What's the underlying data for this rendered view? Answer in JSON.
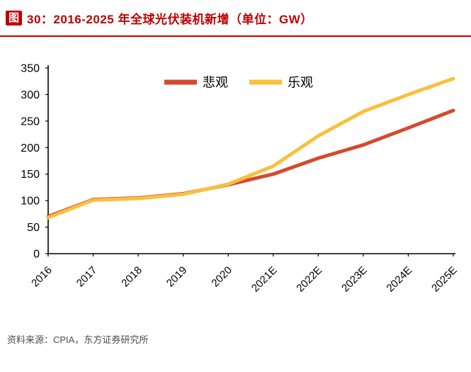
{
  "header": {
    "figure_label": "图",
    "title": "30：2016-2025 年全球光伏装机新增（单位：GW）"
  },
  "footer": {
    "source": "资料来源：CPIA，东方证券研究所"
  },
  "colors": {
    "title_red": "#c00000",
    "axis": "#000000",
    "source_text": "#4d4d4d",
    "pessimistic_red": "#d6492d",
    "optimistic_yellow": "#fac03d"
  },
  "chart_data": {
    "type": "line",
    "title": "2016-2025 年全球光伏装机新增（单位：GW）",
    "unit": "GW",
    "categories": [
      "2016",
      "2017",
      "2018",
      "2019",
      "2020",
      "2021E",
      "2022E",
      "2023E",
      "2024E",
      "2025E"
    ],
    "series": [
      {
        "name": "悲观",
        "color": "#d6492d",
        "values": [
          70,
          102,
          105,
          113,
          130,
          150,
          180,
          205,
          237,
          270
        ]
      },
      {
        "name": "乐观",
        "color": "#fac03d",
        "values": [
          68,
          101,
          104,
          112,
          131,
          165,
          222,
          268,
          300,
          330
        ]
      }
    ],
    "ylim": [
      0,
      350
    ],
    "yticks": [
      0,
      50,
      100,
      150,
      200,
      250,
      300,
      350
    ],
    "xlabel": "",
    "ylabel": "",
    "legend_position": "top-center",
    "grid": false
  }
}
